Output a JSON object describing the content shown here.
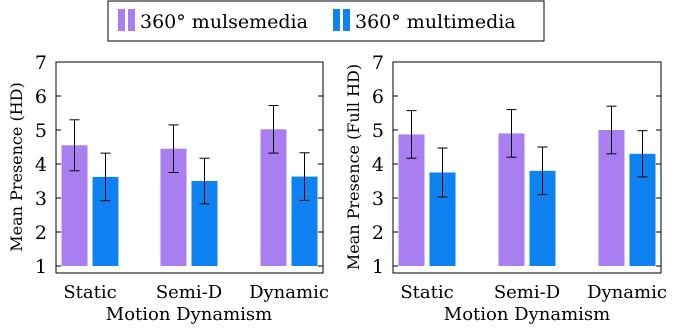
{
  "legend": {
    "entries": [
      {
        "label": "360° mulsemedia",
        "color": "#a97ef0"
      },
      {
        "label": "360° multimedia",
        "color": "#0f82f2"
      }
    ]
  },
  "chart_data": [
    {
      "type": "bar",
      "categories": [
        "Static",
        "Semi-D",
        "Dynamic"
      ],
      "xlabel": "Motion Dynamism",
      "ylabel": "Mean Presence (HD)",
      "ylim": [
        1,
        7
      ],
      "yticks": [
        1,
        2,
        3,
        4,
        5,
        6,
        7
      ],
      "grid": false,
      "series": [
        {
          "name": "360° mulsemedia",
          "color": "#a97ef0",
          "values": [
            4.55,
            4.45,
            5.02
          ],
          "errors": [
            0.75,
            0.7,
            0.7
          ]
        },
        {
          "name": "360° multimedia",
          "color": "#0f82f2",
          "values": [
            3.62,
            3.5,
            3.63
          ],
          "errors": [
            0.7,
            0.67,
            0.7
          ]
        }
      ]
    },
    {
      "type": "bar",
      "categories": [
        "Static",
        "Semi-D",
        "Dynamic"
      ],
      "xlabel": "Motion Dynamism",
      "ylabel": "Mean Presence (Full HD)",
      "ylim": [
        1,
        7
      ],
      "yticks": [
        1,
        2,
        3,
        4,
        5,
        6,
        7
      ],
      "grid": false,
      "series": [
        {
          "name": "360° mulsemedia",
          "color": "#a97ef0",
          "values": [
            4.87,
            4.9,
            5.0
          ],
          "errors": [
            0.7,
            0.7,
            0.7
          ]
        },
        {
          "name": "360° multimedia",
          "color": "#0f82f2",
          "values": [
            3.75,
            3.8,
            4.3
          ],
          "errors": [
            0.72,
            0.7,
            0.68
          ]
        }
      ]
    }
  ]
}
